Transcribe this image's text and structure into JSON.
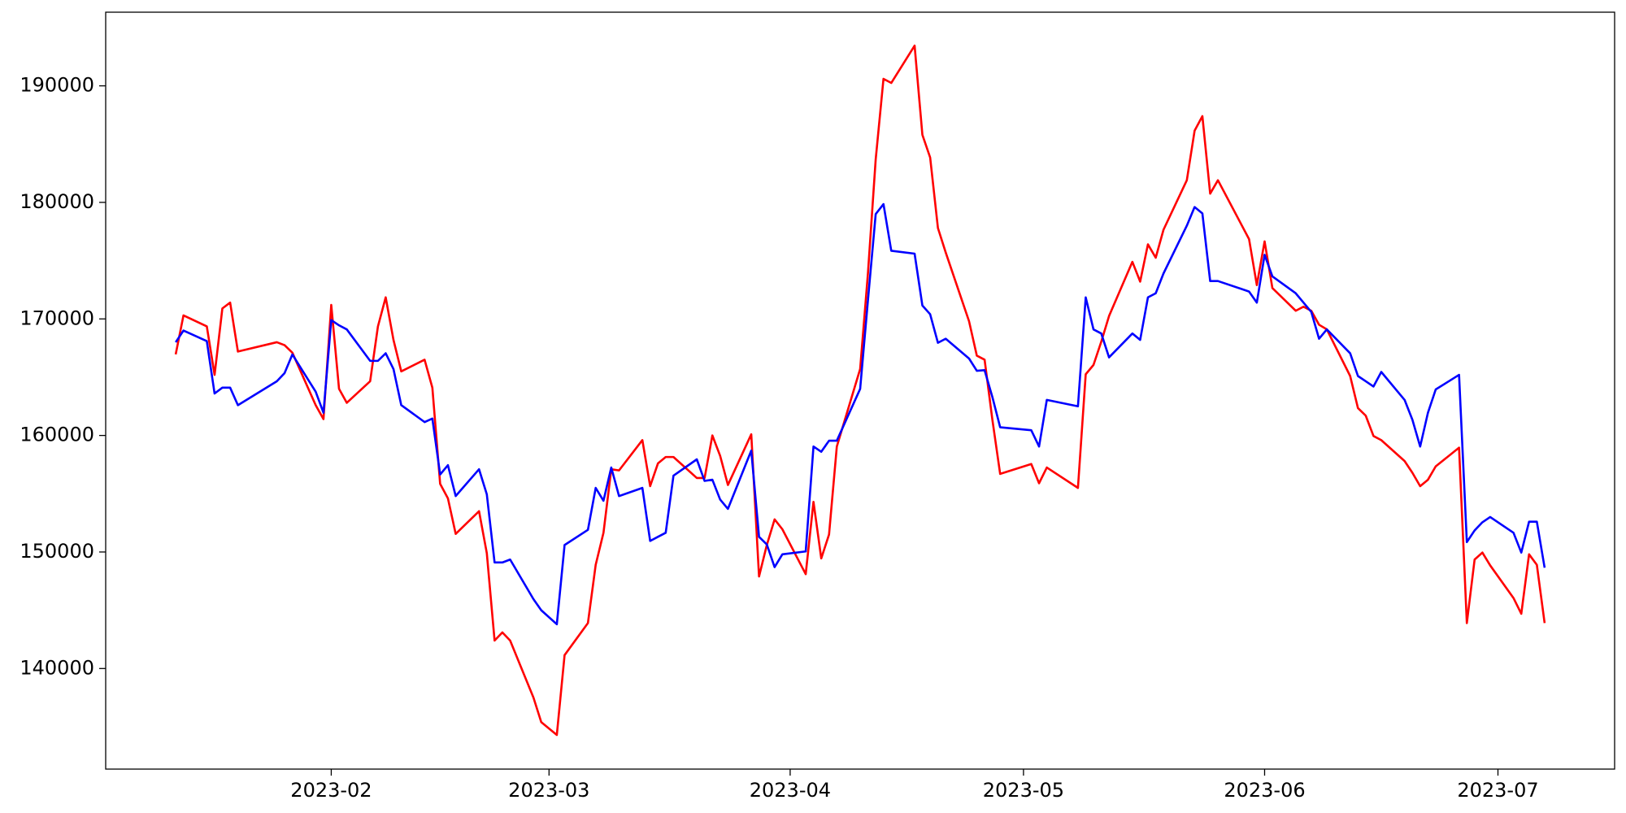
{
  "chart_data": {
    "type": "line",
    "x": [
      "2023-01-12",
      "2023-01-13",
      "2023-01-16",
      "2023-01-17",
      "2023-01-18",
      "2023-01-19",
      "2023-01-20",
      "2023-01-25",
      "2023-01-26",
      "2023-01-27",
      "2023-01-30",
      "2023-01-31",
      "2023-02-01",
      "2023-02-02",
      "2023-02-03",
      "2023-02-06",
      "2023-02-07",
      "2023-02-08",
      "2023-02-09",
      "2023-02-10",
      "2023-02-13",
      "2023-02-14",
      "2023-02-15",
      "2023-02-16",
      "2023-02-17",
      "2023-02-20",
      "2023-02-21",
      "2023-02-22",
      "2023-02-23",
      "2023-02-24",
      "2023-02-27",
      "2023-02-28",
      "2023-03-02",
      "2023-03-03",
      "2023-03-06",
      "2023-03-07",
      "2023-03-08",
      "2023-03-09",
      "2023-03-10",
      "2023-03-13",
      "2023-03-14",
      "2023-03-15",
      "2023-03-16",
      "2023-03-17",
      "2023-03-20",
      "2023-03-21",
      "2023-03-22",
      "2023-03-23",
      "2023-03-24",
      "2023-03-27",
      "2023-03-28",
      "2023-03-29",
      "2023-03-30",
      "2023-03-31",
      "2023-04-03",
      "2023-04-04",
      "2023-04-05",
      "2023-04-06",
      "2023-04-07",
      "2023-04-10",
      "2023-04-11",
      "2023-04-12",
      "2023-04-13",
      "2023-04-14",
      "2023-04-17",
      "2023-04-18",
      "2023-04-19",
      "2023-04-20",
      "2023-04-21",
      "2023-04-24",
      "2023-04-25",
      "2023-04-26",
      "2023-04-27",
      "2023-04-28",
      "2023-05-02",
      "2023-05-03",
      "2023-05-04",
      "2023-05-08",
      "2023-05-09",
      "2023-05-10",
      "2023-05-11",
      "2023-05-12",
      "2023-05-15",
      "2023-05-16",
      "2023-05-17",
      "2023-05-18",
      "2023-05-19",
      "2023-05-22",
      "2023-05-23",
      "2023-05-24",
      "2023-05-25",
      "2023-05-26",
      "2023-05-30",
      "2023-05-31",
      "2023-06-01",
      "2023-06-02",
      "2023-06-05",
      "2023-06-06",
      "2023-06-07",
      "2023-06-08",
      "2023-06-09",
      "2023-06-12",
      "2023-06-13",
      "2023-06-14",
      "2023-06-15",
      "2023-06-16",
      "2023-06-19",
      "2023-06-20",
      "2023-06-21",
      "2023-06-22",
      "2023-06-23",
      "2023-06-26",
      "2023-06-27",
      "2023-06-28",
      "2023-06-29",
      "2023-06-30",
      "2023-07-03",
      "2023-07-04",
      "2023-07-05",
      "2023-07-06",
      "2023-07-07"
    ],
    "series": [
      {
        "color": "#ff0000",
        "values": [
          166960,
          170300,
          169360,
          165200,
          170900,
          171400,
          167200,
          168000,
          167750,
          167100,
          162600,
          161400,
          171200,
          164000,
          162800,
          164650,
          169350,
          171850,
          168200,
          165500,
          166500,
          164100,
          155850,
          154600,
          151550,
          153500,
          149900,
          142400,
          143100,
          142400,
          137500,
          135400,
          134300,
          141150,
          143900,
          148900,
          151650,
          157100,
          157000,
          159600,
          155650,
          157600,
          158150,
          158150,
          156350,
          156350,
          160000,
          158250,
          155750,
          160100,
          147900,
          150600,
          152800,
          151950,
          148100,
          154300,
          149450,
          151500,
          159050,
          165700,
          173900,
          183700,
          190600,
          190250,
          193450,
          185800,
          183850,
          177800,
          175700,
          169800,
          166850,
          166500,
          161350,
          156700,
          157550,
          155900,
          157250,
          155500,
          165250,
          166050,
          168050,
          170250,
          174900,
          173200,
          176400,
          175250,
          177650,
          181900,
          186150,
          187400,
          180750,
          181900,
          176850,
          172900,
          176650,
          172650,
          170700,
          171050,
          170700,
          169500,
          169100,
          165100,
          162350,
          161700,
          159950,
          159600,
          157800,
          156800,
          155650,
          156200,
          157350,
          158950,
          143900,
          149350,
          149950,
          148850,
          146050,
          144700,
          149800,
          148900,
          143900
        ]
      },
      {
        "color": "#0000ff",
        "values": [
          168000,
          169000,
          168100,
          163600,
          164100,
          164100,
          162600,
          164650,
          165350,
          166950,
          163750,
          161950,
          169900,
          169450,
          169100,
          166400,
          166400,
          167050,
          165700,
          162600,
          161150,
          161450,
          156650,
          157450,
          154800,
          157100,
          154950,
          149100,
          149100,
          149350,
          145950,
          145000,
          143800,
          150600,
          151900,
          155500,
          154400,
          157250,
          154800,
          155500,
          150950,
          151300,
          151650,
          156550,
          157950,
          156100,
          156200,
          154500,
          153700,
          158700,
          151300,
          150650,
          148700,
          149800,
          150050,
          159050,
          158600,
          159550,
          159550,
          164000,
          171600,
          179000,
          179850,
          175850,
          175600,
          171150,
          170400,
          167950,
          168300,
          166600,
          165550,
          165600,
          163300,
          160700,
          160450,
          159050,
          163050,
          162500,
          171850,
          169100,
          168750,
          166700,
          168750,
          168200,
          171850,
          172200,
          173900,
          178000,
          179600,
          179050,
          173250,
          173250,
          172350,
          171400,
          175500,
          173650,
          172200,
          171400,
          170600,
          168300,
          169100,
          167050,
          165100,
          164650,
          164200,
          165450,
          163050,
          161350,
          159050,
          161950,
          163950,
          165200,
          150850,
          151850,
          152550,
          153000,
          151650,
          149950,
          152600,
          152600,
          148650
        ]
      }
    ],
    "xlim": [
      "2023-01-03",
      "2023-07-16"
    ],
    "xticks": [
      {
        "value": "2023-02-01",
        "label": "2023-02"
      },
      {
        "value": "2023-03-01",
        "label": "2023-03"
      },
      {
        "value": "2023-04-01",
        "label": "2023-04"
      },
      {
        "value": "2023-05-01",
        "label": "2023-05"
      },
      {
        "value": "2023-06-01",
        "label": "2023-06"
      },
      {
        "value": "2023-07-01",
        "label": "2023-07"
      }
    ],
    "ylim": [
      131370,
      196320
    ],
    "yticks": [
      140000,
      150000,
      160000,
      170000,
      180000,
      190000
    ],
    "grid": false
  }
}
